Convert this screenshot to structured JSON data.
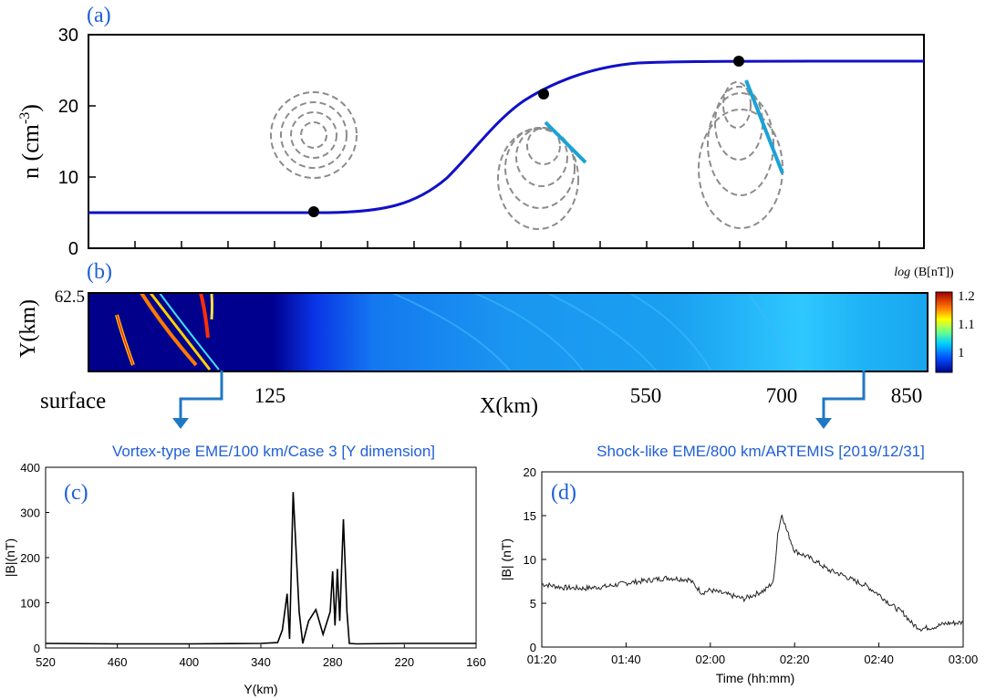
{
  "colors": {
    "density_curve": "#1010c8",
    "wave_front": "#1aa3d6",
    "circles": "#8c8c8c",
    "title_blue": "#1f5fd6",
    "arrow": "#1f78c4"
  },
  "panel_a": {
    "tag": "(a)",
    "ylabel_base": "n (cm",
    "ylabel_exp": "-3",
    "ylabel_close": ")",
    "yticks": [
      "0",
      "10",
      "20",
      "30"
    ]
  },
  "panel_b": {
    "tag": "(b)",
    "ylabel": "Y(km)",
    "ytop": "62.5",
    "surface_label": "surface",
    "xlabel": "X(km)",
    "xticks": [
      "125",
      "550",
      "700",
      "850"
    ],
    "colorbar_title_log": "log",
    "colorbar_title_rest": "(B[nT])",
    "colorbar_ticks": [
      "1.2",
      "1.1",
      "1"
    ]
  },
  "panel_c": {
    "tag": "(c)",
    "title": "Vortex-type EME/100 km/Case 3 [Y dimension]",
    "ylabel": "|B|(nT)",
    "xlabel": "Y(km)",
    "xticks": [
      "520",
      "460",
      "400",
      "340",
      "280",
      "220",
      "160"
    ],
    "yticks": [
      "0",
      "100",
      "200",
      "300",
      "400"
    ]
  },
  "panel_d": {
    "tag": "(d)",
    "title": "Shock-like EME/800 km/ARTEMIS [2019/12/31]",
    "ylabel": "|B| (nT)",
    "xlabel": "Time (hh:mm)",
    "xticks": [
      "01:20",
      "01:40",
      "02:00",
      "02:20",
      "02:40",
      "03:00"
    ],
    "yticks": [
      "0",
      "5",
      "10",
      "15",
      "20"
    ]
  },
  "chart_data": [
    {
      "type": "line",
      "panel": "a",
      "ylabel": "n (cm-3)",
      "ylim": [
        0,
        30
      ],
      "description_points": [
        {
          "x_frac": 0.27,
          "y": 5.1
        },
        {
          "x_frac": 0.55,
          "y": 21.5
        },
        {
          "x_frac": 0.78,
          "y": 26.3
        }
      ],
      "low_density": 5.0,
      "high_density": 26.3
    },
    {
      "type": "heatmap",
      "panel": "b",
      "xlabel": "X(km)",
      "ylabel": "Y(km)",
      "ylim": [
        0,
        62.5
      ],
      "xticks": [
        125,
        550,
        700,
        850
      ],
      "colorbar": {
        "label": "log (B[nT])",
        "ticks": [
          1.2,
          1.1,
          1
        ]
      }
    },
    {
      "type": "line",
      "panel": "c",
      "title": "Vortex-type EME/100 km/Case 3 [Y dimension]",
      "xlabel": "Y(km)",
      "ylabel": "|B|(nT)",
      "xlim": [
        520,
        160
      ],
      "ylim": [
        0,
        400
      ],
      "x": [
        520,
        460,
        400,
        340,
        326,
        322,
        318,
        316,
        313,
        308,
        305,
        300,
        294,
        288,
        282,
        280,
        278,
        276,
        274,
        271,
        268,
        266,
        260,
        220,
        160
      ],
      "y": [
        10,
        9,
        9,
        10,
        12,
        40,
        120,
        20,
        345,
        80,
        10,
        60,
        85,
        30,
        80,
        170,
        50,
        175,
        60,
        285,
        80,
        10,
        9,
        10,
        10
      ]
    },
    {
      "type": "line",
      "panel": "d",
      "title": "Shock-like EME/800 km/ARTEMIS [2019/12/31]",
      "xlabel": "Time (hh:mm)",
      "ylabel": "|B| (nT)",
      "xlim": [
        "01:20",
        "03:00"
      ],
      "ylim": [
        0,
        20
      ],
      "x_minutes": [
        0,
        5,
        10,
        15,
        20,
        25,
        30,
        35,
        38,
        40,
        44,
        48,
        50,
        53,
        55,
        56,
        57,
        58,
        60,
        63,
        65,
        68,
        71,
        74,
        77,
        80,
        83,
        86,
        88,
        90,
        93,
        96,
        100
      ],
      "y": [
        7.2,
        6.8,
        6.7,
        6.9,
        7.3,
        7.6,
        7.9,
        7.7,
        6.2,
        6.5,
        6.0,
        5.5,
        5.9,
        6.5,
        7.5,
        13,
        15.2,
        13.5,
        11,
        10.3,
        9.8,
        8.8,
        8.3,
        7.6,
        7.0,
        6.0,
        4.8,
        3.8,
        2.6,
        2.1,
        2.3,
        2.7,
        2.8
      ]
    }
  ]
}
